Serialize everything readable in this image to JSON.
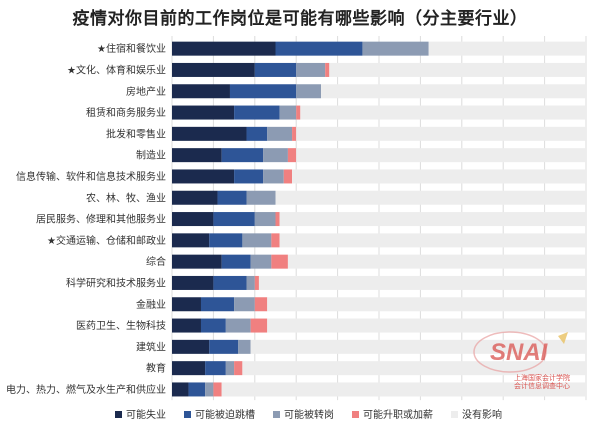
{
  "title": "疫情对你目前的工作岗位是可能有哪些影响（分主要行业）",
  "chart_data": {
    "type": "bar",
    "orientation": "horizontal",
    "stacked": true,
    "xlim": [
      0,
      100
    ],
    "grid": true,
    "legend_position": "bottom",
    "categories": [
      "★住宿和餐饮业",
      "★文化、体育和娱乐业",
      "房地产业",
      "租赁和商务服务业",
      "批发和零售业",
      "制造业",
      "信息传输、软件和信息技术服务业",
      "农、林、牧、渔业",
      "居民服务、修理和其他服务业",
      "★交通运输、仓储和邮政业",
      "综合",
      "科学研究和技术服务业",
      "金融业",
      "医药卫生、生物科技",
      "建筑业",
      "教育",
      "电力、热力、燃气及水生产和供应业"
    ],
    "series": [
      {
        "name": "可能失业",
        "color": "#1b2a4e",
        "values": [
          25,
          20,
          14,
          15,
          18,
          12,
          15,
          11,
          10,
          9,
          12,
          10,
          7,
          7,
          9,
          8,
          4
        ]
      },
      {
        "name": "可能被迫跳槽",
        "color": "#2e5597",
        "values": [
          21,
          10,
          16,
          11,
          5,
          10,
          7,
          7,
          10,
          8,
          7,
          8,
          8,
          6,
          7,
          5,
          4
        ]
      },
      {
        "name": "可能被转岗",
        "color": "#8c9bb3",
        "values": [
          16,
          7,
          6,
          4,
          6,
          6,
          5,
          7,
          5,
          7,
          5,
          2,
          5,
          6,
          3,
          2,
          2
        ]
      },
      {
        "name": "可能升职或加薪",
        "color": "#f08080",
        "values": [
          0,
          1,
          0,
          1,
          1,
          2,
          2,
          0,
          1,
          2,
          4,
          1,
          3,
          4,
          0,
          2,
          2
        ]
      },
      {
        "name": "没有影响",
        "color": "#ededed",
        "values": [
          38,
          62,
          64,
          69,
          70,
          70,
          71,
          75,
          74,
          74,
          72,
          79,
          77,
          77,
          81,
          83,
          88
        ]
      }
    ]
  },
  "watermark": {
    "logo_text": "SNAI",
    "caption_line1": "上海国家会计学院",
    "caption_line2": "会计信息调查中心"
  }
}
